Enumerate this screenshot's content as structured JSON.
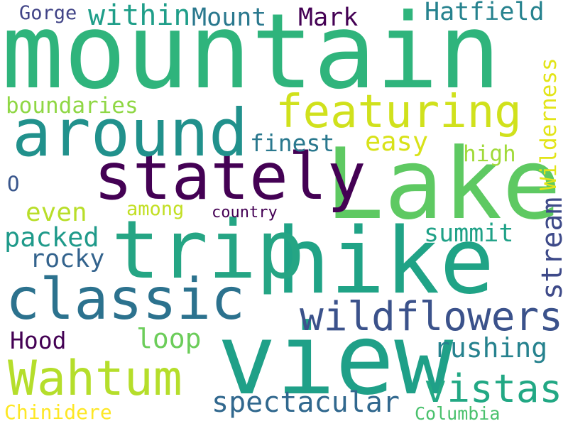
{
  "words": [
    {
      "id": "mountain",
      "text": "mountain",
      "color": "#2fb47c"
    },
    {
      "id": "lake",
      "text": "Lake",
      "color": "#5ec962"
    },
    {
      "id": "hike",
      "text": "hike",
      "color": "#20a386"
    },
    {
      "id": "view",
      "text": "view",
      "color": "#1fa088"
    },
    {
      "id": "trip",
      "text": "trip",
      "color": "#25a584"
    },
    {
      "id": "stately",
      "text": "stately",
      "color": "#440154"
    },
    {
      "id": "around",
      "text": "around",
      "color": "#21918c"
    },
    {
      "id": "classic",
      "text": "classic",
      "color": "#2c728e"
    },
    {
      "id": "featuring",
      "text": "featuring",
      "color": "#d0e11c"
    },
    {
      "id": "wildflowers",
      "text": "wildflowers",
      "color": "#3b528b"
    },
    {
      "id": "wahtum",
      "text": "Wahtum",
      "color": "#b5de2b"
    },
    {
      "id": "vistas",
      "text": "vistas",
      "color": "#22a884"
    },
    {
      "id": "spectacular",
      "text": "spectacular",
      "color": "#31688e"
    },
    {
      "id": "rushing",
      "text": "rushing",
      "color": "#26828e"
    },
    {
      "id": "within",
      "text": "within",
      "color": "#1f9e89"
    },
    {
      "id": "mount",
      "text": "Mount",
      "color": "#2a788e"
    },
    {
      "id": "mark",
      "text": "Mark",
      "color": "#440154"
    },
    {
      "id": "hatfield",
      "text": "Hatfield",
      "color": "#26828e"
    },
    {
      "id": "gorge",
      "text": "Gorge",
      "color": "#414487"
    },
    {
      "id": "boundaries",
      "text": "boundaries",
      "color": "#8fd744"
    },
    {
      "id": "finest",
      "text": "finest",
      "color": "#2a788e"
    },
    {
      "id": "easy",
      "text": "easy",
      "color": "#d8e219"
    },
    {
      "id": "high",
      "text": "high",
      "color": "#a0da39"
    },
    {
      "id": "o",
      "text": "O",
      "color": "#39568c"
    },
    {
      "id": "even",
      "text": "even",
      "color": "#b8de29"
    },
    {
      "id": "among",
      "text": "among",
      "color": "#c2df23"
    },
    {
      "id": "country",
      "text": "country",
      "color": "#440154"
    },
    {
      "id": "packed",
      "text": "packed",
      "color": "#1f9a8a"
    },
    {
      "id": "summit",
      "text": "summit",
      "color": "#1fa187"
    },
    {
      "id": "rocky",
      "text": "rocky",
      "color": "#33638d"
    },
    {
      "id": "hood",
      "text": "Hood",
      "color": "#440154"
    },
    {
      "id": "loop",
      "text": "loop",
      "color": "#6ccd5a"
    },
    {
      "id": "chinidere",
      "text": "Chinidere",
      "color": "#fde725"
    },
    {
      "id": "columbia",
      "text": "Columbia",
      "color": "#4ac16d"
    },
    {
      "id": "stream",
      "text": "stream",
      "color": "#3e4a89"
    },
    {
      "id": "wilderness",
      "text": "Wilderness",
      "color": "#e2e418"
    }
  ]
}
